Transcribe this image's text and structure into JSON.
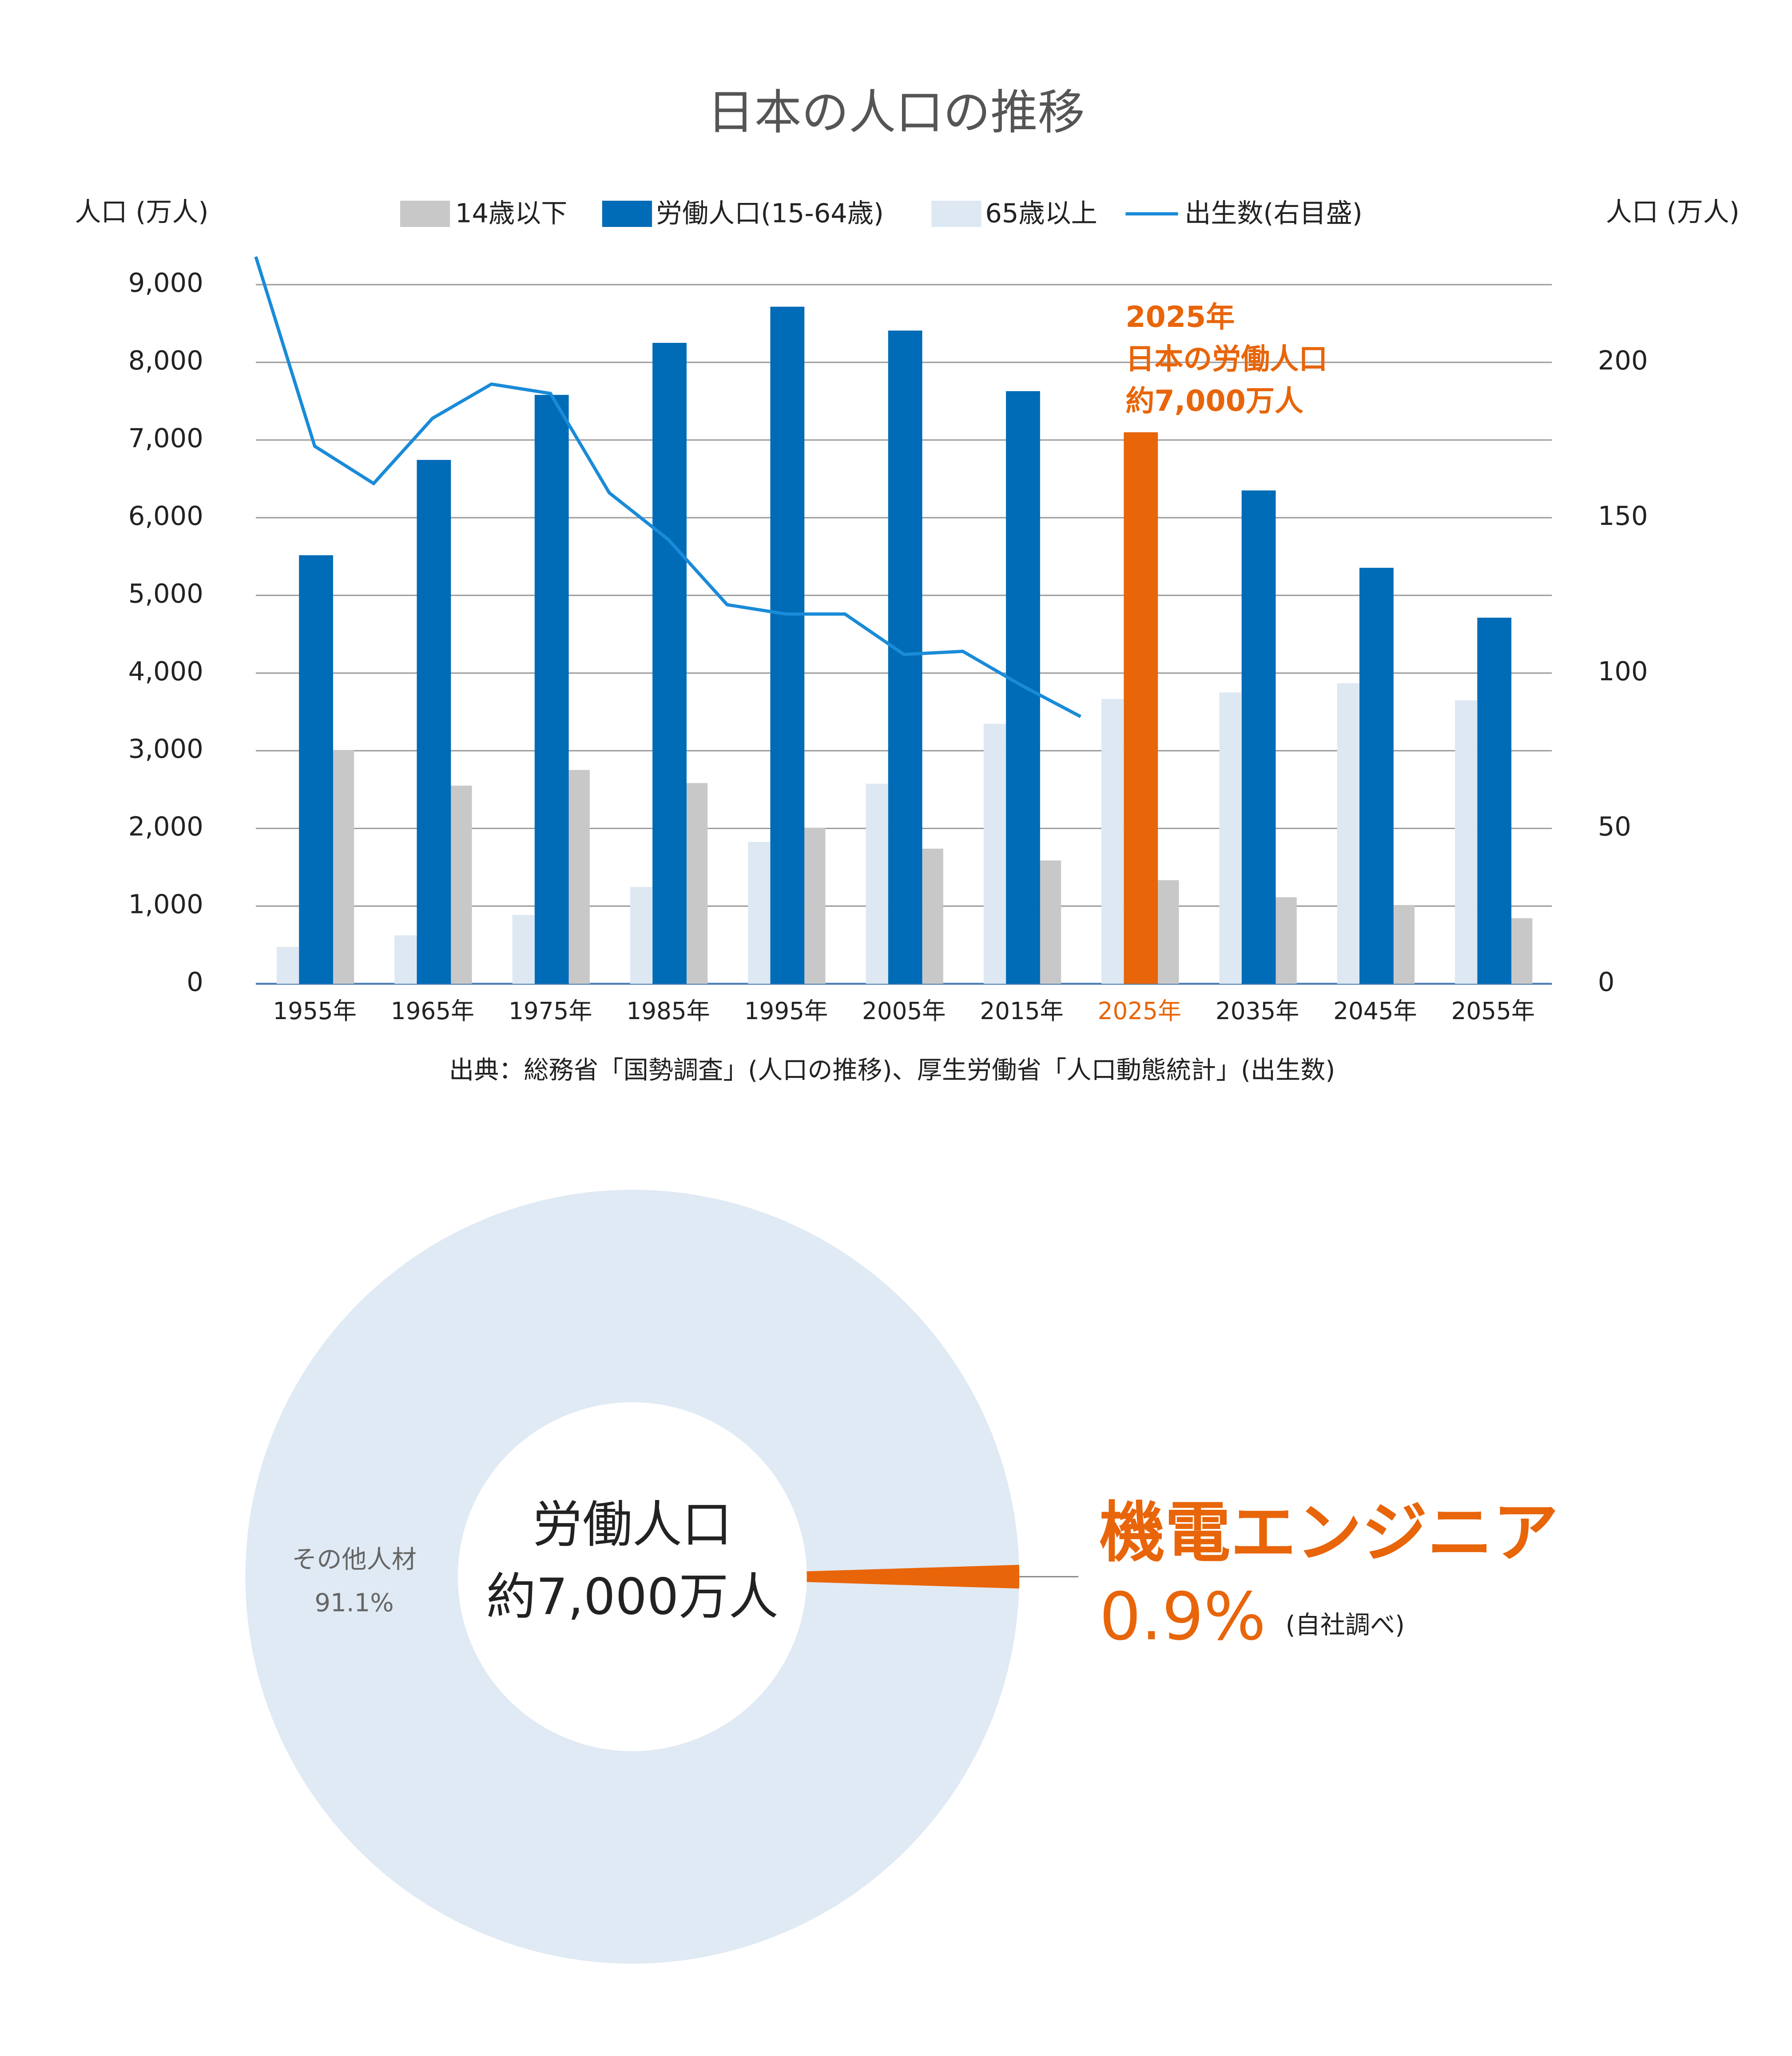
{
  "chart_data": [
    {
      "type": "bar",
      "title": "日本の人口の推移",
      "y_label": "人口 (万人)",
      "y2_label": "人口 (万人)",
      "categories": [
        "1955年",
        "1965年",
        "1975年",
        "1985年",
        "1995年",
        "2005年",
        "2015年",
        "2025年",
        "2035年",
        "2045年",
        "2055年"
      ],
      "xlim": [
        1950,
        2060
      ],
      "series": [
        {
          "name": "14歳以下",
          "color": "#c8c8c8",
          "values": [
            3007,
            2551,
            2753,
            2584,
            2010,
            1740,
            1588,
            1334,
            1115,
            1014,
            845
          ]
        },
        {
          "name": "労働人口(15-64歳)",
          "color": "#006bb6",
          "values": [
            5517,
            6744,
            7581,
            8251,
            8716,
            8409,
            7629,
            7100,
            6351,
            5355,
            4713
          ]
        },
        {
          "name": "65歳以上",
          "color": "#dde8f3",
          "values": [
            475,
            624,
            887,
            1247,
            1826,
            2576,
            3347,
            3666,
            3750,
            3868,
            3649
          ]
        },
        {
          "name": "出生数(右目盛)",
          "type": "line",
          "axis": "y2",
          "color": "#1a8bd8",
          "x": [
            1950,
            1955,
            1960,
            1965,
            1970,
            1975,
            1980,
            1985,
            1990,
            1995,
            2000,
            2005,
            2010,
            2015,
            2020
          ],
          "values": [
            234,
            173,
            161,
            182,
            193,
            190,
            158,
            143,
            122,
            119,
            119,
            106,
            107,
            96,
            86
          ]
        }
      ],
      "ylim": [
        0,
        9000
      ],
      "yticks": [
        0,
        {
          "value": 1000,
          "label": "1,000"
        },
        {
          "value": 2000,
          "label": "2,000"
        },
        {
          "value": 3000,
          "label": "3,000"
        },
        {
          "value": 4000,
          "label": "4,000"
        },
        {
          "value": 5000,
          "label": "5,000"
        },
        {
          "value": 6000,
          "label": "6,000"
        },
        {
          "value": 7000,
          "label": "7,000"
        },
        {
          "value": 8000,
          "label": "8,000"
        },
        {
          "value": 9000,
          "label": "9,000"
        }
      ],
      "y2lim": [
        0,
        225
      ],
      "y2ticks": [
        0,
        50,
        100,
        150,
        200
      ],
      "grid": true,
      "highlight": {
        "category": 7,
        "color": "#e8650a"
      },
      "annotation": [
        "2025年",
        "日本の労働人口",
        "約7,000万人"
      ],
      "source": "出典：総務省「国勢調査」(人口の推移)、厚生労働省「人口動態統計」(出生数)"
    },
    {
      "type": "donut",
      "labels": [
        "その他人材",
        "機電エンジニア"
      ],
      "values": [
        91.1,
        0.9
      ],
      "value_labels": [
        "91.1%",
        "0.9%"
      ],
      "colors": [
        "#e0eaf4",
        "#e8650a"
      ],
      "center_text": [
        "労働人口",
        "約7,000万人"
      ],
      "note": "(自社調べ)"
    }
  ]
}
